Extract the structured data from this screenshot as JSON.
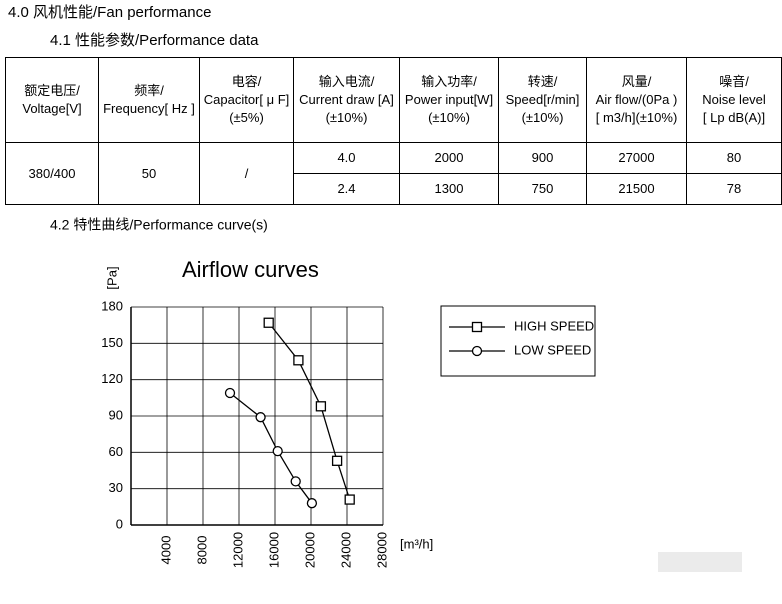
{
  "heading": "4.0 风机性能/Fan performance",
  "subheading1": "4.1 性能参数/Performance data",
  "table": {
    "header": [
      [
        "额定电压/",
        "Voltage[V]"
      ],
      [
        "频率/",
        "Frequency[ Hz ]"
      ],
      [
        "电容/",
        "Capacitor[ μ F]",
        "(±5%)"
      ],
      [
        "输入电流/",
        "Current draw [A]",
        "(±10%)"
      ],
      [
        "输入功率/",
        "Power input[W]",
        "(±10%)"
      ],
      [
        "转速/",
        "Speed[r/min]",
        "(±10%)"
      ],
      [
        "风量/",
        "Air flow/(0Pa )",
        "[ m3/h](±10%)"
      ],
      [
        "噪音/",
        "Noise level",
        "[ Lp dB(A)]"
      ]
    ],
    "shared": [
      "380/400",
      "50",
      "/"
    ],
    "rows": [
      [
        "4.0",
        "2000",
        "900",
        "27000",
        "80"
      ],
      [
        "2.4",
        "1300",
        "750",
        "21500",
        "78"
      ]
    ]
  },
  "subheading2": "4.2 特性曲线/Performance curve(s)",
  "chart_data": {
    "type": "line",
    "title": "Airflow curves",
    "y_label": "[Pa]",
    "x_label": "[m³/h]",
    "xlim": [
      0,
      28000
    ],
    "xticks": [
      4000,
      8000,
      12000,
      16000,
      20000,
      24000,
      28000
    ],
    "ylim": [
      0,
      180
    ],
    "yticks": [
      0,
      30,
      60,
      90,
      120,
      150,
      180
    ],
    "grid": true,
    "legend": "upper right",
    "series": [
      {
        "name": "HIGH SPEED",
        "color": "#000000",
        "marker": "square",
        "x": [
          15300,
          18600,
          21100,
          22900,
          24300
        ],
        "values": [
          167,
          136,
          98,
          53,
          21
        ]
      },
      {
        "name": "LOW SPEED",
        "color": "#000000",
        "marker": "circle",
        "x": [
          11000,
          14400,
          16300,
          18300,
          20100
        ],
        "values": [
          109,
          89,
          61,
          36,
          18
        ]
      }
    ]
  }
}
